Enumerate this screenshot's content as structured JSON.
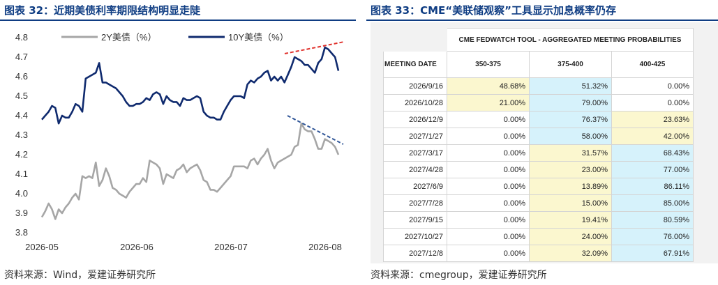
{
  "left": {
    "title": "图表 32：近期美债利率期限结构明显走陡",
    "source": "资料来源：Wind，爱建证券研究所",
    "chart_data": {
      "type": "line",
      "ylim": [
        3.8,
        4.8
      ],
      "yticks": [
        "3.8",
        "3.9",
        "4.0",
        "4.1",
        "4.2",
        "4.3",
        "4.4",
        "4.5",
        "4.6",
        "4.7",
        "4.8"
      ],
      "xticks": [
        "2026-05",
        "2026-06",
        "2026-07",
        "2026-08"
      ],
      "legend_position": "top",
      "series": [
        {
          "name": "2Y美债（%）",
          "color": "#a6a6a6",
          "values": [
            3.88,
            3.91,
            3.95,
            3.92,
            3.87,
            3.92,
            3.9,
            3.93,
            3.95,
            3.98,
            4.0,
            3.97,
            4.09,
            4.08,
            4.09,
            4.08,
            4.16,
            4.04,
            4.07,
            4.13,
            4.09,
            4.03,
            4.02,
            4.0,
            3.99,
            3.98,
            4.01,
            4.03,
            4.05,
            4.05,
            4.08,
            4.06,
            4.17,
            4.16,
            4.15,
            4.13,
            4.05,
            4.1,
            4.09,
            4.08,
            4.12,
            4.13,
            4.15,
            4.11,
            4.13,
            4.14,
            4.15,
            4.12,
            4.07,
            4.06,
            4.02,
            4.02,
            4.01,
            4.03,
            4.05,
            4.07,
            4.09,
            4.14,
            4.14,
            4.14,
            4.14,
            4.13,
            4.17,
            4.18,
            4.15,
            4.18,
            4.2,
            4.23,
            4.17,
            4.13,
            4.16,
            4.17,
            4.18,
            4.19,
            4.2,
            4.24,
            4.25,
            4.36,
            4.33,
            4.32,
            4.32,
            4.28,
            4.23,
            4.23,
            4.28,
            4.27,
            4.26,
            4.24,
            4.2
          ]
        },
        {
          "name": "10Y美债（%）",
          "color": "#0f2a6e",
          "values": [
            4.38,
            4.4,
            4.42,
            4.45,
            4.44,
            4.36,
            4.4,
            4.39,
            4.39,
            4.42,
            4.46,
            4.45,
            4.42,
            4.59,
            4.6,
            4.61,
            4.62,
            4.67,
            4.57,
            4.57,
            4.56,
            4.55,
            4.54,
            4.52,
            4.5,
            4.47,
            4.45,
            4.45,
            4.46,
            4.46,
            4.47,
            4.49,
            4.48,
            4.51,
            4.52,
            4.51,
            4.46,
            4.5,
            4.48,
            4.47,
            4.47,
            4.45,
            4.49,
            4.48,
            4.48,
            4.49,
            4.5,
            4.49,
            4.42,
            4.4,
            4.39,
            4.39,
            4.38,
            4.38,
            4.42,
            4.45,
            4.48,
            4.5,
            4.5,
            4.5,
            4.49,
            4.56,
            4.58,
            4.57,
            4.59,
            4.6,
            4.62,
            4.63,
            4.58,
            4.6,
            4.58,
            4.6,
            4.57,
            4.61,
            4.65,
            4.7,
            4.69,
            4.68,
            4.66,
            4.66,
            4.64,
            4.62,
            4.67,
            4.69,
            4.75,
            4.74,
            4.72,
            4.7,
            4.63
          ]
        }
      ]
    }
  },
  "right": {
    "title": "图表 33：CME“美联储观察”工具显示加息概率仍存",
    "source": "资料来源：cmegroup，爱建证券研究所",
    "table_title": "CME FEDWATCH TOOL - AGGREGATED MEETING PROBABILITIES",
    "columns": [
      "MEETING DATE",
      "350-375",
      "375-400",
      "400-425"
    ],
    "colors": {
      "blue": "#d6f2fb",
      "yellow": "#fbf7cf"
    },
    "rows": [
      {
        "date": "2026/9/16",
        "v": [
          "48.68%",
          "51.32%",
          "0.00%"
        ],
        "shade": [
          "yellow",
          "blue",
          "white"
        ]
      },
      {
        "date": "2026/10/28",
        "v": [
          "21.00%",
          "79.00%",
          "0.00%"
        ],
        "shade": [
          "yellow",
          "blue",
          "white"
        ]
      },
      {
        "date": "2026/12/9",
        "v": [
          "0.00%",
          "76.37%",
          "23.63%"
        ],
        "shade": [
          "white",
          "blue",
          "yellow"
        ]
      },
      {
        "date": "2027/1/27",
        "v": [
          "0.00%",
          "58.00%",
          "42.00%"
        ],
        "shade": [
          "white",
          "blue",
          "yellow"
        ]
      },
      {
        "date": "2027/3/17",
        "v": [
          "0.00%",
          "31.57%",
          "68.43%"
        ],
        "shade": [
          "white",
          "yellow",
          "blue"
        ]
      },
      {
        "date": "2027/4/28",
        "v": [
          "0.00%",
          "23.00%",
          "77.00%"
        ],
        "shade": [
          "white",
          "yellow",
          "blue"
        ]
      },
      {
        "date": "2027/6/9",
        "v": [
          "0.00%",
          "13.89%",
          "86.11%"
        ],
        "shade": [
          "white",
          "yellow",
          "blue"
        ]
      },
      {
        "date": "2027/7/28",
        "v": [
          "0.00%",
          "15.00%",
          "85.00%"
        ],
        "shade": [
          "white",
          "yellow",
          "blue"
        ]
      },
      {
        "date": "2027/9/15",
        "v": [
          "0.00%",
          "19.41%",
          "80.59%"
        ],
        "shade": [
          "white",
          "yellow",
          "blue"
        ]
      },
      {
        "date": "2027/10/27",
        "v": [
          "0.00%",
          "24.00%",
          "76.00%"
        ],
        "shade": [
          "white",
          "yellow",
          "blue"
        ]
      },
      {
        "date": "2027/12/8",
        "v": [
          "0.00%",
          "32.09%",
          "67.91%"
        ],
        "shade": [
          "white",
          "yellow",
          "blue"
        ]
      }
    ]
  }
}
